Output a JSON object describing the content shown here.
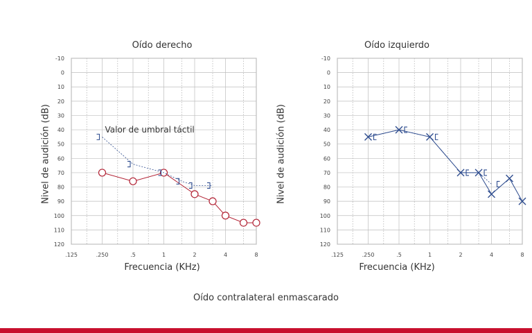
{
  "caption": "Oído contralateral enmascarado",
  "colors": {
    "right": "#b22234",
    "left": "#2f4d8f",
    "brand_bar": "#c8102e"
  },
  "chart_data": [
    {
      "type": "line",
      "title": "Oído derecho",
      "xlabel": "Frecuencia (KHz)",
      "ylabel": "Nivel de audición (dB)",
      "x_ticks": [
        ".125",
        ".250",
        ".5",
        "1",
        "2",
        "4",
        "8"
      ],
      "x_scale": "log2",
      "y_ticks": [
        "-10",
        "0",
        "10",
        "20",
        "30",
        "40",
        "50",
        "60",
        "70",
        "80",
        "90",
        "100",
        "110",
        "120"
      ],
      "ylim": [
        -10,
        120
      ],
      "y_inverted": true,
      "annotation": "Valor de umbral táctil",
      "series": [
        {
          "symbol": "circle",
          "color": "#b22234",
          "x": [
            0.25,
            0.5,
            1,
            2,
            3,
            4,
            6,
            8
          ],
          "y": [
            70,
            76,
            70,
            85,
            90,
            100,
            105,
            105
          ]
        },
        {
          "symbol": "bracket-right",
          "color": "#2f4d8f",
          "x": [
            0.25,
            0.5,
            1,
            1.5,
            2,
            3
          ],
          "y": [
            45,
            64,
            70,
            76,
            79,
            79
          ]
        }
      ]
    },
    {
      "type": "line",
      "title": "Oído izquierdo",
      "xlabel": "Frecuencia (KHz)",
      "ylabel": "Nivel de audición (dB)",
      "x_ticks": [
        ".125",
        ".250",
        ".5",
        "1",
        "2",
        "4",
        "8"
      ],
      "x_scale": "log2",
      "y_ticks": [
        "-10",
        "0",
        "10",
        "20",
        "30",
        "40",
        "50",
        "60",
        "70",
        "80",
        "90",
        "100",
        "110",
        "120"
      ],
      "ylim": [
        -10,
        120
      ],
      "y_inverted": true,
      "series": [
        {
          "symbol": "cross",
          "color": "#2f4d8f",
          "x": [
            0.25,
            0.5,
            1,
            2,
            3,
            4,
            6,
            8
          ],
          "y": [
            45,
            40,
            45,
            70,
            70,
            85,
            74,
            90
          ]
        },
        {
          "symbol": "bracket-left",
          "color": "#2f4d8f",
          "x": [
            0.25,
            0.5,
            1,
            2,
            3,
            4
          ],
          "y": [
            45,
            40,
            45,
            70,
            70,
            78
          ]
        }
      ]
    }
  ]
}
